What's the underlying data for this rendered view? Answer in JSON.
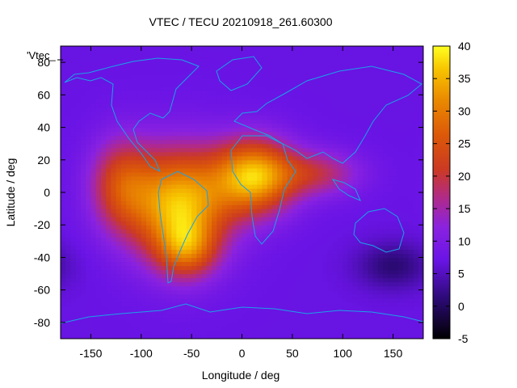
{
  "chart_data": {
    "type": "heatmap",
    "title": "VTEC / TECU 20210918_261.60300",
    "xlabel": "Longitude / deg",
    "ylabel": "Latitude / deg",
    "legend_label": "'Vtec_",
    "xlim": [
      -180,
      180
    ],
    "ylim": [
      -90,
      90
    ],
    "x_ticks": [
      -150,
      -100,
      -50,
      0,
      50,
      100,
      150
    ],
    "y_ticks": [
      -80,
      -60,
      -40,
      -20,
      0,
      20,
      40,
      60,
      80
    ],
    "colorbar": {
      "min": -5,
      "max": 40,
      "ticks": [
        -5,
        0,
        5,
        10,
        15,
        20,
        25,
        30,
        35,
        40
      ]
    },
    "background_level_tecu": 7,
    "features": [
      {
        "name": "South America maximum",
        "lon": -62,
        "lat": -8,
        "peak_tecu": 36,
        "lon_spread": 34,
        "lat_spread": 24
      },
      {
        "name": "West Africa maximum",
        "lon": 12,
        "lat": 10,
        "peak_tecu": 35,
        "lon_spread": 28,
        "lat_spread": 16
      },
      {
        "name": "Central Pacific tail",
        "lon": -120,
        "lat": 5,
        "peak_tecu": 22,
        "lon_spread": 22,
        "lat_spread": 20
      },
      {
        "name": "Southern Atlantic extension",
        "lon": -55,
        "lat": -35,
        "peak_tecu": 20,
        "lon_spread": 20,
        "lat_spread": 12
      },
      {
        "name": "Indian Ocean band",
        "lon": 75,
        "lat": 12,
        "peak_tecu": 18,
        "lon_spread": 30,
        "lat_spread": 10
      },
      {
        "name": "Southern Pacific trough",
        "lon": 150,
        "lat": -45,
        "peak_tecu": 1,
        "lon_spread": 25,
        "lat_spread": 10
      }
    ]
  }
}
